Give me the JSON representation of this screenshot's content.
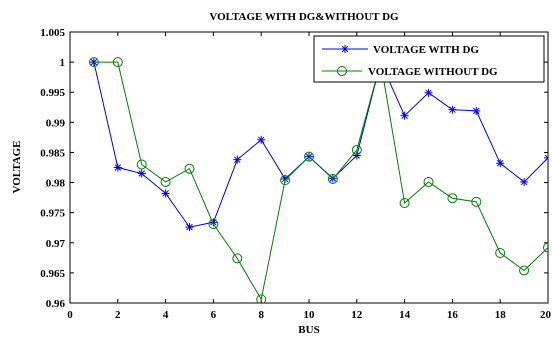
{
  "chart_data": {
    "type": "line",
    "title": "VOLTAGE WITH DG&WITHOUT DG",
    "xlabel": "BUS",
    "ylabel": "VOLTAGE",
    "xlim": [
      0,
      20
    ],
    "ylim": [
      0.96,
      1.005
    ],
    "x_ticks": [
      "0",
      "2",
      "4",
      "6",
      "8",
      "10",
      "12",
      "14",
      "16",
      "18",
      "20"
    ],
    "y_ticks": [
      "0.96",
      "0.965",
      "0.97",
      "0.975",
      "0.98",
      "0.985",
      "0.99",
      "0.995",
      "1",
      "1.005"
    ],
    "legend_position": "top-right",
    "grid": false,
    "x": [
      1,
      2,
      3,
      4,
      5,
      6,
      7,
      8,
      9,
      10,
      11,
      12,
      13,
      14,
      15,
      16,
      17,
      18,
      19,
      20
    ],
    "series": [
      {
        "name": "VOLTAGE WITH DG",
        "color": "#0000ff",
        "marker": "star",
        "values": [
          1.0,
          0.9825,
          0.9815,
          0.9782,
          0.9726,
          0.9734,
          0.9838,
          0.9871,
          0.9806,
          0.9843,
          0.9807,
          0.9845,
          1.0,
          0.9911,
          0.9949,
          0.9921,
          0.9919,
          0.9832,
          0.9801,
          0.9841
        ]
      },
      {
        "name": "VOLTAGE WITHOUT DG",
        "color": "#008000",
        "marker": "circle",
        "values": [
          1.0,
          1.0,
          0.983,
          0.9801,
          0.9823,
          0.9731,
          0.9674,
          0.9606,
          0.9804,
          0.9843,
          0.9806,
          0.9854,
          1.0,
          0.9766,
          0.9801,
          0.9774,
          0.9768,
          0.9683,
          0.9654,
          0.9692
        ]
      }
    ]
  }
}
